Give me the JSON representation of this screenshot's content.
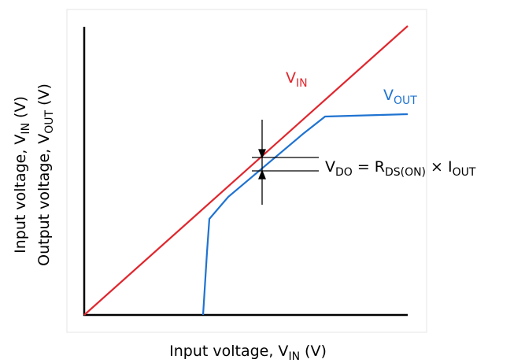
{
  "diagram": {
    "vin_label": {
      "main": "V",
      "sub": "IN"
    },
    "vout_label": {
      "main": "V",
      "sub": "OUT"
    },
    "equation": [
      "V",
      "DO",
      "=",
      "R",
      "DS(ON)",
      "×",
      "I",
      "OUT"
    ],
    "x_axis_label": [
      "Input voltage, V",
      "IN",
      "(V)"
    ],
    "y_axis_label_1": [
      "Input voltage, V",
      "IN",
      "(V)"
    ],
    "y_axis_label_2": [
      "Output voltage, V",
      "OUT",
      "(V)"
    ]
  }
}
